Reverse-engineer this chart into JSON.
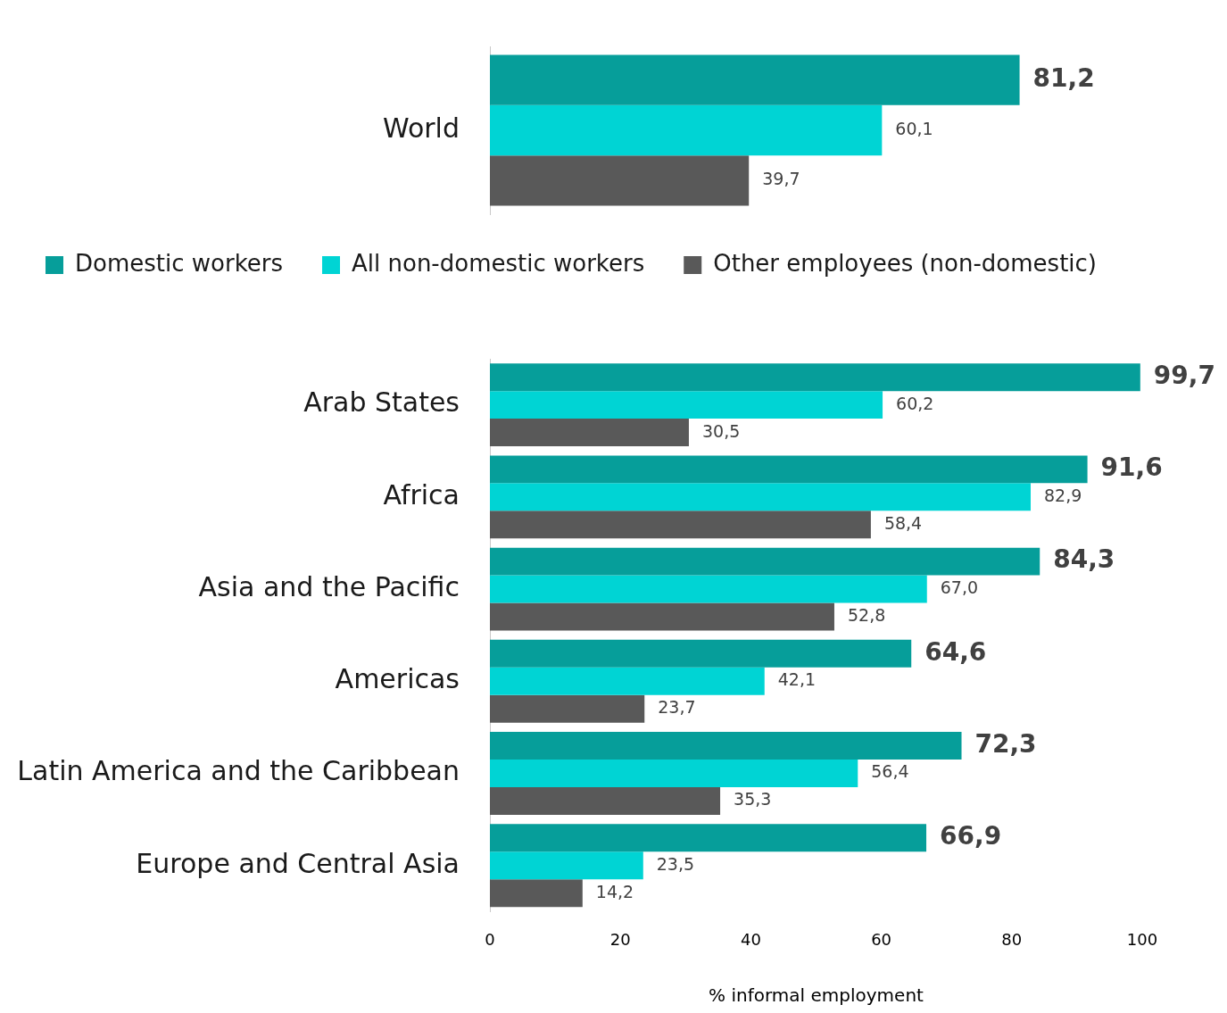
{
  "chart_data": [
    {
      "type": "bar",
      "orientation": "horizontal",
      "categories": [
        "World"
      ],
      "series": [
        {
          "name": "Domestic workers",
          "color": "#069e9a",
          "values": [
            81.2
          ],
          "value_labels": [
            "81,2"
          ]
        },
        {
          "name": "All non-domestic workers",
          "color": "#00d4d4",
          "values": [
            60.1
          ],
          "value_labels": [
            "60,1"
          ]
        },
        {
          "name": "Other employees (non-domestic)",
          "color": "#595959",
          "values": [
            39.7
          ],
          "value_labels": [
            "39,7"
          ]
        }
      ],
      "xlim": [
        0,
        100
      ],
      "tick_labels": "y",
      "legend": "bottom"
    },
    {
      "type": "bar",
      "orientation": "horizontal",
      "categories": [
        "Arab States",
        "Africa",
        "Asia and the Pacific",
        "Americas",
        "Latin America and the Caribbean",
        "Europe and Central Asia"
      ],
      "series": [
        {
          "color": "#069e9a",
          "values": [
            99.7,
            91.6,
            84.3,
            64.6,
            72.3,
            66.9
          ],
          "value_labels": [
            "99,7",
            "91,6",
            "84,3",
            "64,6",
            "72,3",
            "66,9"
          ]
        },
        {
          "color": "#00d4d4",
          "values": [
            60.2,
            82.9,
            67.0,
            42.1,
            56.4,
            23.5
          ],
          "value_labels": [
            "60,2",
            "82,9",
            "67,0",
            "42,1",
            "56,4",
            "23,5"
          ]
        },
        {
          "color": "#595959",
          "values": [
            30.5,
            58.4,
            52.8,
            23.7,
            35.3,
            14.2
          ],
          "value_labels": [
            "30,5",
            "58,4",
            "52,8",
            "23,7",
            "35,3",
            "14,2"
          ]
        }
      ],
      "xlim": [
        0,
        100
      ],
      "xticks": [
        0,
        20,
        40,
        60,
        80,
        100
      ],
      "xlabel": "% informal employment"
    }
  ]
}
